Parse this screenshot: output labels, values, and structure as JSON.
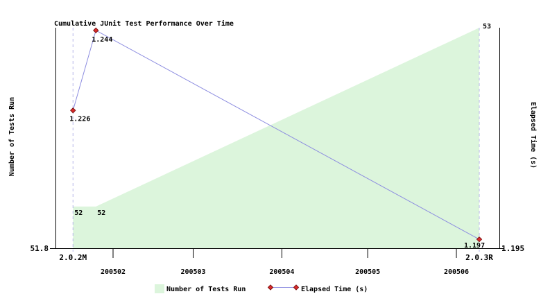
{
  "title": "Cumulative JUnit Test Performance Over Time",
  "legend": {
    "items": [
      {
        "label": "Number of Tests Run",
        "type": "area"
      },
      {
        "label": "Elapsed Time (s)",
        "type": "line"
      }
    ]
  },
  "colors": {
    "background": "#ffffff",
    "area_fill": "#dcf5dc",
    "line": "#8c8ce0",
    "marker_fill": "#dd2b2b",
    "marker_stroke": "#7d1212",
    "release_text": "#9090d8",
    "release_line": "#b6b6e8",
    "axis": "#000000"
  },
  "chart_data": {
    "type": "area",
    "subtype": "area + line, dual y-axis, time x-axis",
    "title": "Cumulative JUnit Test Performance Over Time",
    "x_axis": {
      "ticks": [
        {
          "label": "200502",
          "date": "2005-02-01"
        },
        {
          "label": "200503",
          "date": "2005-03-01"
        },
        {
          "label": "200504",
          "date": "2005-04-01"
        },
        {
          "label": "200505",
          "date": "2005-05-01"
        },
        {
          "label": "200506",
          "date": "2005-06-01"
        }
      ],
      "releases": [
        {
          "label": "2.0.2M",
          "date": "2005-01-18"
        },
        {
          "label": "2.0.3R",
          "date": "2005-06-09"
        }
      ]
    },
    "left_axis": {
      "label": "Number of Tests Run",
      "min": 51.767,
      "max": 53.0,
      "min_tick_label": "51.8"
    },
    "right_axis": {
      "label": "Elapsed Time (s)",
      "min": 1.195,
      "max": 1.2446,
      "min_tick_label": "1.195"
    },
    "legend_position": "bottom",
    "grid": false,
    "series": [
      {
        "name": "Number of Tests Run",
        "type": "area",
        "axis": "left",
        "points": [
          {
            "date": "2005-01-18",
            "value": 52,
            "label": "52",
            "dx": 2,
            "dy": 12
          },
          {
            "date": "2005-01-26",
            "value": 52,
            "label": "52",
            "dx": 2,
            "dy": 12
          },
          {
            "date": "2005-06-09",
            "value": 53,
            "label": "53",
            "dx": 5,
            "dy": 1
          }
        ]
      },
      {
        "name": "Elapsed Time (s)",
        "type": "line",
        "axis": "right",
        "points": [
          {
            "date": "2005-01-18",
            "value": 1.226,
            "label": "1.226",
            "dx": -5,
            "dy": 15
          },
          {
            "date": "2005-01-26",
            "value": 1.244,
            "label": "1.244",
            "dx": -6,
            "dy": 16
          },
          {
            "date": "2005-06-09",
            "value": 1.197,
            "label": "1.197",
            "dx": -22,
            "dy": 12
          }
        ]
      }
    ]
  }
}
